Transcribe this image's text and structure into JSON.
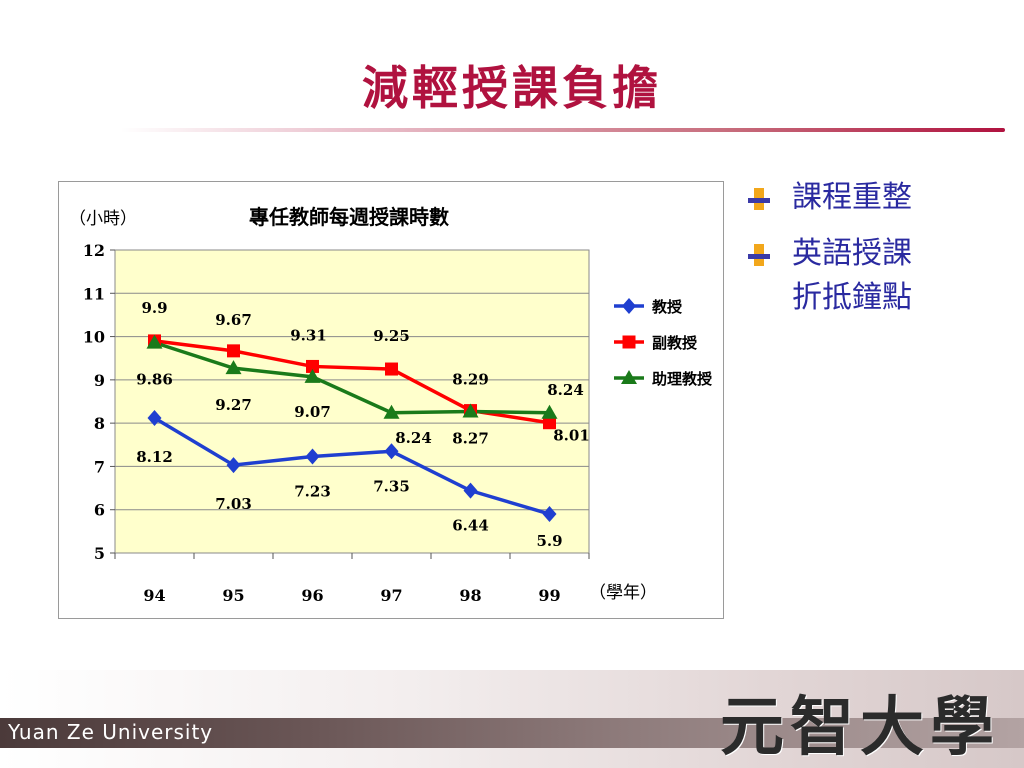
{
  "slide": {
    "title": "減輕授課負擔"
  },
  "bullets": [
    {
      "line1": "課程重整",
      "line2": ""
    },
    {
      "line1": "英語授課",
      "line2": "折抵鐘點"
    }
  ],
  "footer": {
    "university_en": "Yuan Ze University",
    "university_cn": "元智大學"
  },
  "colors": {
    "title": "#b0123f",
    "bullet_text": "#2a2aa0",
    "plot_bg": "#ffffcc",
    "series_1": "#1f3fd0",
    "series_2": "#ff0000",
    "series_3": "#1a7a1a"
  },
  "chart_data": {
    "type": "line",
    "title": "專任教師每週授課時數",
    "ylabel": "（小時）",
    "xlabel": "（學年）",
    "categories": [
      "94",
      "95",
      "96",
      "97",
      "98",
      "99"
    ],
    "ylim": [
      5,
      12
    ],
    "yticks": [
      5,
      6,
      7,
      8,
      9,
      10,
      11,
      12
    ],
    "grid": true,
    "legend": "right",
    "series": [
      {
        "name": "教授",
        "marker": "diamond",
        "values": [
          8.12,
          7.03,
          7.23,
          7.35,
          6.44,
          5.9
        ],
        "labels": [
          "8.12",
          "7.03",
          "7.23",
          "7.35",
          "6.44",
          "5.9"
        ]
      },
      {
        "name": "副教授",
        "marker": "square",
        "values": [
          9.9,
          9.67,
          9.31,
          9.25,
          8.29,
          8.01
        ],
        "labels": [
          "9.9",
          "9.67",
          "9.31",
          "9.25",
          "8.29",
          "8.01"
        ]
      },
      {
        "name": "助理教授",
        "marker": "triangle",
        "values": [
          9.86,
          9.27,
          9.07,
          8.24,
          8.27,
          8.24
        ],
        "labels": [
          "9.86",
          "9.27",
          "9.07",
          "8.24",
          "8.27",
          "8.24"
        ]
      }
    ]
  }
}
